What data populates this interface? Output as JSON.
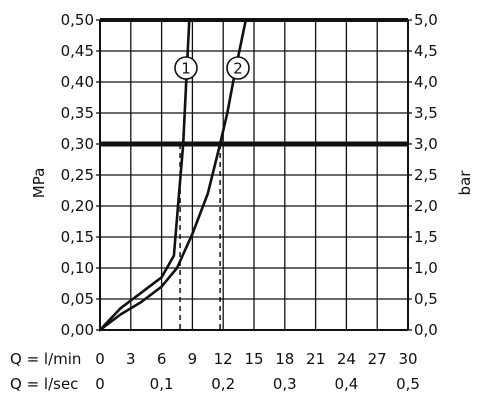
{
  "chart_data": {
    "type": "line",
    "xlabel_rows": [
      {
        "prefix": "Q = l/min",
        "ticks": [
          "0",
          "3",
          "6",
          "9",
          "12",
          "15",
          "18",
          "21",
          "24",
          "27",
          "30"
        ],
        "ticks_x": [
          0,
          3,
          6,
          9,
          12,
          15,
          18,
          21,
          24,
          27,
          30
        ]
      },
      {
        "prefix": "Q = l/sec",
        "ticks": [
          "0",
          "0,1",
          "0,2",
          "0,3",
          "0,4",
          "0,5"
        ],
        "ticks_x": [
          0,
          6,
          12,
          18,
          24,
          30
        ]
      }
    ],
    "ylabel_left": "MPa",
    "ylabel_right": "bar",
    "ylim": [
      0,
      0.5
    ],
    "xlim": [
      0,
      30
    ],
    "yticks_left": [
      "0,00",
      "0,05",
      "0,10",
      "0,15",
      "0,20",
      "0,25",
      "0,30",
      "0,35",
      "0,40",
      "0,45",
      "0,50"
    ],
    "yticks_right": [
      "0,0",
      "0,5",
      "1,0",
      "1,5",
      "2,0",
      "2,5",
      "3,0",
      "3,5",
      "4,0",
      "4,5",
      "5,0"
    ],
    "ytick_values": [
      0,
      0.05,
      0.1,
      0.15,
      0.2,
      0.25,
      0.3,
      0.35,
      0.4,
      0.45,
      0.5
    ],
    "grid": true,
    "reference_line": {
      "y": 0.3
    },
    "series": [
      {
        "name": "1",
        "x": [
          0,
          2,
          4,
          6,
          7.2,
          7.6,
          8.1,
          8.4,
          8.7
        ],
        "y": [
          0,
          0.035,
          0.06,
          0.085,
          0.12,
          0.2,
          0.3,
          0.4,
          0.5
        ]
      },
      {
        "name": "2",
        "x": [
          0,
          2,
          4,
          6,
          7.5,
          9,
          10.5,
          11.7,
          12.4,
          13.2,
          14.2
        ],
        "y": [
          0,
          0.025,
          0.045,
          0.07,
          0.1,
          0.155,
          0.22,
          0.3,
          0.35,
          0.42,
          0.5
        ]
      }
    ],
    "dashed_markers": [
      {
        "x": 7.8,
        "y_top": 0.3
      },
      {
        "x": 11.7,
        "y_top": 0.3
      }
    ]
  }
}
